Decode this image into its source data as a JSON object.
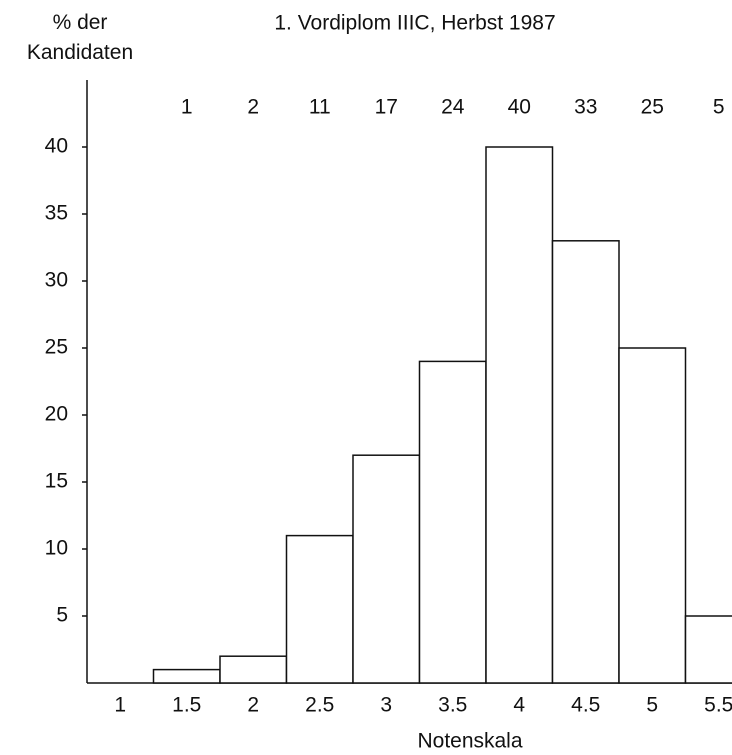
{
  "chart_data": {
    "type": "bar",
    "title": "1. Vordiplom IIIC, Herbst 1987",
    "ylabel": "% der Kandidaten",
    "xlabel": "Notenskala",
    "categories": [
      "1",
      "1.5",
      "2",
      "2.5",
      "3",
      "3.5",
      "4",
      "4.5",
      "5",
      "5.5"
    ],
    "values": [
      null,
      1,
      2,
      11,
      17,
      24,
      40,
      33,
      25,
      5
    ],
    "color": "#ffffff",
    "ylim": [
      0,
      45
    ],
    "yticks": [
      5,
      10,
      15,
      20,
      25,
      30,
      35,
      40
    ]
  }
}
